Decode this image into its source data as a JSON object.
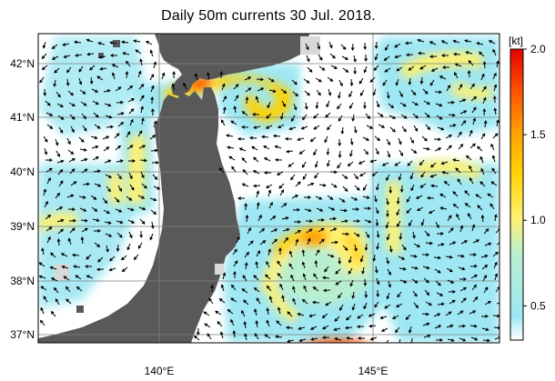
{
  "title": "Daily 50m currents 30 Jul. 2018.",
  "colorbar": {
    "unit": "[kt]",
    "ticks": [
      {
        "value": 2.0,
        "label": "2.0"
      },
      {
        "value": 1.5,
        "label": "1.5"
      },
      {
        "value": 1.0,
        "label": "1.0"
      },
      {
        "value": 0.5,
        "label": "0.5"
      }
    ],
    "range": [
      0.3,
      2.0
    ],
    "colors": [
      "#ffffff",
      "#9ee7f3",
      "#b9efce",
      "#fff170",
      "#ffd100",
      "#ff9d00",
      "#ff5000",
      "#e50000"
    ]
  },
  "axes": {
    "lat_labels": [
      "42°N",
      "41°N",
      "40°N",
      "39°N",
      "38°N",
      "37°N"
    ],
    "lon_labels": [
      "140°E",
      "145°E"
    ]
  },
  "colors": {
    "land": "#595959",
    "sea": "#ffffff",
    "grid": "#7a7a7a"
  }
}
